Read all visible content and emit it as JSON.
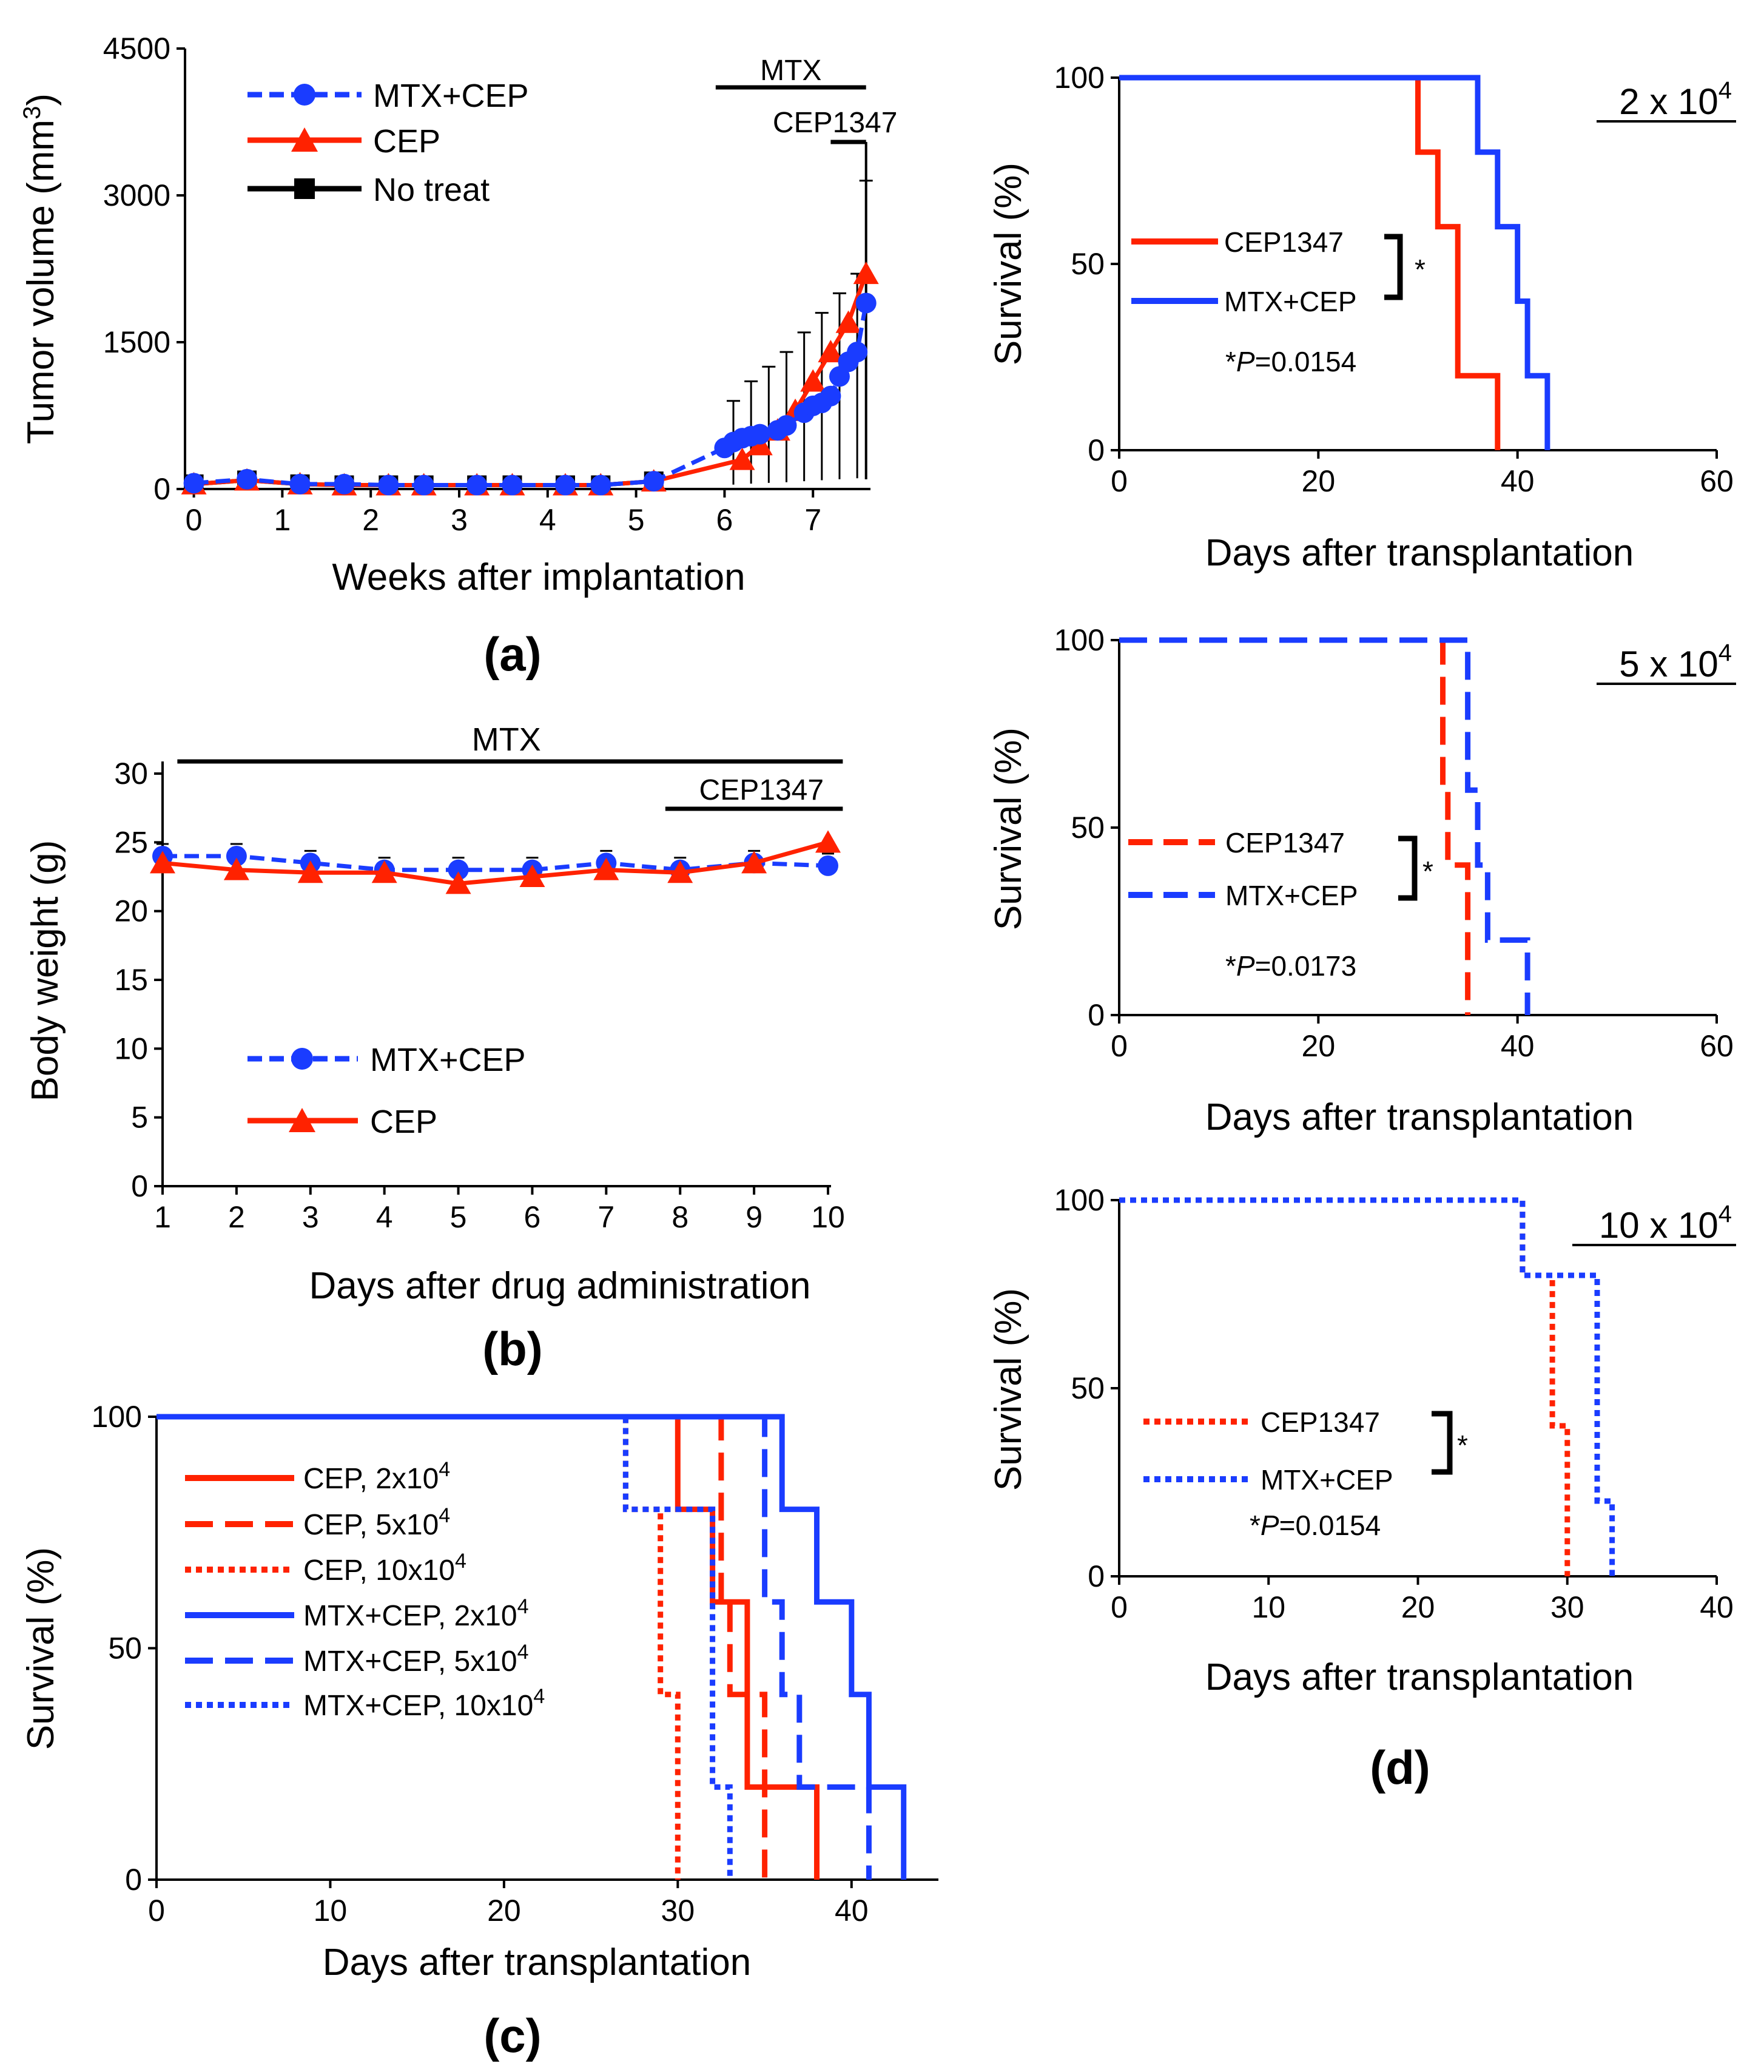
{
  "colors": {
    "red": "#ff2200",
    "blue": "#1a3cff",
    "black": "#000000"
  },
  "panels": {
    "a": {
      "label": "(a)",
      "xlabel": "Weeks after implantation",
      "ylabel": "Tumor volume (mm3)",
      "ylabel_main": "Tumor volume (mm",
      "ylabel_sup": "3",
      "ylabel_close": ")",
      "yticks": [
        "0",
        "1500",
        "3000",
        "4500"
      ],
      "xticks": [
        "0",
        "1",
        "2",
        "3",
        "4",
        "5",
        "6",
        "7"
      ],
      "bar1": "MTX",
      "bar2": "CEP1347",
      "legend": [
        "MTX+CEP",
        "CEP",
        "No treat"
      ]
    },
    "b": {
      "label": "(b)",
      "xlabel": "Days after drug administration",
      "ylabel": "Body weight (g)",
      "yticks": [
        "0",
        "5",
        "10",
        "15",
        "20",
        "25",
        "30"
      ],
      "xticks": [
        "1",
        "2",
        "3",
        "4",
        "5",
        "6",
        "7",
        "8",
        "9",
        "10"
      ],
      "bar1": "MTX",
      "bar2": "CEP1347",
      "legend": [
        "MTX+CEP",
        "CEP"
      ]
    },
    "c": {
      "label": "(c)",
      "xlabel": "Days after transplantation",
      "ylabel": "Survival (%)",
      "yticks": [
        "0",
        "50",
        "100"
      ],
      "xticks": [
        "0",
        "10",
        "20",
        "30",
        "40"
      ],
      "legend": [
        {
          "name": "CEP,  2x10",
          "sup": "4"
        },
        {
          "name": "CEP,  5x10",
          "sup": "4"
        },
        {
          "name": "CEP,  10x10",
          "sup": "4"
        },
        {
          "name": "MTX+CEP,  2x10",
          "sup": "4"
        },
        {
          "name": "MTX+CEP,  5x10",
          "sup": "4"
        },
        {
          "name": "MTX+CEP,  10x10",
          "sup": "4"
        }
      ]
    },
    "d1": {
      "conc": "2 x 10",
      "conc_sup": "4",
      "xlabel": "Days after transplantation",
      "ylabel": "Survival (%)",
      "yticks": [
        "0",
        "50",
        "100"
      ],
      "xticks": [
        "0",
        "20",
        "40",
        "60"
      ],
      "legend": [
        "CEP1347",
        "MTX+CEP"
      ],
      "star": "*",
      "p_star": "*",
      "p_italic": "P",
      "p_value": "=0.0154"
    },
    "d2": {
      "conc": "5 x 10",
      "conc_sup": "4",
      "xlabel": "Days after transplantation",
      "ylabel": "Survival (%)",
      "yticks": [
        "0",
        "50",
        "100"
      ],
      "xticks": [
        "0",
        "20",
        "40",
        "60"
      ],
      "legend": [
        "CEP1347",
        "MTX+CEP"
      ],
      "star": "*",
      "p_star": "*",
      "p_italic": "P",
      "p_value": "=0.0173"
    },
    "d3": {
      "conc": "10 x 10",
      "conc_sup": "4",
      "xlabel": "Days after transplantation",
      "ylabel": "Survival (%)",
      "yticks": [
        "0",
        "50",
        "100"
      ],
      "xticks": [
        "0",
        "10",
        "20",
        "30",
        "40"
      ],
      "legend": [
        "CEP1347",
        "MTX+CEP"
      ],
      "star": "*",
      "p_star": "*",
      "p_italic": "P",
      "p_value": "=0.0154"
    },
    "d": {
      "label": "(d)"
    }
  },
  "chart_data": [
    {
      "id": "a",
      "type": "line",
      "title": "",
      "xlabel": "Weeks after implantation",
      "ylabel": "Tumor volume (mm3)",
      "xlim": [
        -0.1,
        7.65
      ],
      "ylim": [
        0,
        4500
      ],
      "annotations": [
        "MTX",
        "CEP1347"
      ],
      "treatment_bars": [
        {
          "label": "MTX",
          "from": 5.9,
          "to": 7.6
        },
        {
          "label": "CEP1347",
          "from": 7.2,
          "to": 7.6
        }
      ],
      "series": [
        {
          "name": "MTX+CEP",
          "color": "blue",
          "dash": "dashed",
          "marker": "circle",
          "x": [
            0,
            0.6,
            1.2,
            1.7,
            2.2,
            2.6,
            3.2,
            3.6,
            4.2,
            4.6,
            5.2,
            6.0,
            6.1,
            6.2,
            6.3,
            6.4,
            6.6,
            6.7,
            6.9,
            7.0,
            7.1,
            7.2,
            7.3,
            7.4,
            7.5,
            7.6
          ],
          "y": [
            60,
            100,
            50,
            50,
            40,
            40,
            40,
            40,
            40,
            40,
            80,
            420,
            480,
            520,
            540,
            560,
            600,
            650,
            780,
            850,
            880,
            950,
            1150,
            1300,
            1400,
            1900
          ]
        },
        {
          "name": "CEP",
          "color": "red",
          "dash": "solid",
          "marker": "triangle",
          "x": [
            0,
            0.6,
            1.2,
            1.7,
            2.2,
            2.6,
            3.2,
            3.6,
            4.2,
            4.6,
            5.2,
            6.2,
            6.4,
            6.6,
            6.8,
            7.0,
            7.2,
            7.4,
            7.6
          ],
          "y": [
            50,
            90,
            50,
            40,
            40,
            40,
            40,
            40,
            40,
            40,
            80,
            300,
            450,
            600,
            800,
            1100,
            1400,
            1700,
            2200
          ]
        },
        {
          "name": "No treat",
          "color": "black",
          "dash": "solid",
          "marker": "square",
          "x": [
            0,
            0.6,
            1.2,
            1.7,
            2.2,
            2.6,
            3.2,
            3.6,
            4.2,
            4.6,
            5.2
          ],
          "y": [
            50,
            90,
            50,
            40,
            40,
            40,
            40,
            40,
            40,
            40,
            80
          ]
        }
      ],
      "error_upper": {
        "x": [
          6.1,
          6.3,
          6.5,
          6.7,
          6.9,
          7.1,
          7.3,
          7.5,
          7.6
        ],
        "y": [
          900,
          1100,
          1250,
          1400,
          1600,
          1800,
          2000,
          2200,
          3150
        ]
      }
    },
    {
      "id": "b",
      "type": "line",
      "title": "",
      "xlabel": "Days after drug administration",
      "ylabel": "Body weight (g)",
      "xlim": [
        1,
        10
      ],
      "ylim": [
        0,
        30
      ],
      "annotations": [
        "MTX",
        "CEP1347"
      ],
      "treatment_bars": [
        {
          "label": "MTX",
          "from": 1.2,
          "to": 10.2
        },
        {
          "label": "CEP1347",
          "from": 7.8,
          "to": 10.2
        }
      ],
      "series": [
        {
          "name": "MTX+CEP",
          "color": "blue",
          "dash": "dashed",
          "marker": "circle",
          "x": [
            1,
            2,
            3,
            4,
            5,
            6,
            7,
            8,
            9,
            10
          ],
          "y": [
            24.0,
            24.0,
            23.5,
            23.0,
            23.0,
            23.0,
            23.5,
            23.0,
            23.5,
            23.3
          ]
        },
        {
          "name": "CEP",
          "color": "red",
          "dash": "solid",
          "marker": "triangle",
          "x": [
            1,
            2,
            3,
            4,
            5,
            6,
            7,
            8,
            9,
            10
          ],
          "y": [
            23.5,
            23.0,
            22.8,
            22.8,
            22.0,
            22.5,
            23.0,
            22.8,
            23.5,
            25.0
          ]
        }
      ]
    },
    {
      "id": "c",
      "type": "line",
      "title": "",
      "xlabel": "Days after transplantation",
      "ylabel": "Survival (%)",
      "xlim": [
        0,
        45
      ],
      "ylim": [
        0,
        100
      ],
      "series": [
        {
          "name": "CEP, 2x10^4",
          "color": "red",
          "dash": "solid",
          "x": [
            0,
            30,
            30,
            32,
            32,
            34,
            34,
            38,
            38
          ],
          "y": [
            100,
            100,
            80,
            80,
            60,
            60,
            20,
            20,
            0
          ]
        },
        {
          "name": "CEP, 5x10^4",
          "color": "red",
          "dash": "dashed",
          "x": [
            0,
            32.5,
            32.5,
            33,
            33,
            35,
            35
          ],
          "y": [
            100,
            100,
            60,
            60,
            40,
            40,
            0
          ]
        },
        {
          "name": "CEP, 10x10^4",
          "color": "red",
          "dash": "dotted",
          "x": [
            0,
            27,
            27,
            29,
            29,
            30,
            30
          ],
          "y": [
            100,
            100,
            80,
            80,
            40,
            40,
            0
          ]
        },
        {
          "name": "MTX+CEP, 2x10^4",
          "color": "blue",
          "dash": "solid",
          "x": [
            0,
            36,
            36,
            38,
            38,
            40,
            40,
            41,
            41,
            43,
            43
          ],
          "y": [
            100,
            100,
            80,
            80,
            60,
            60,
            40,
            40,
            20,
            20,
            0
          ]
        },
        {
          "name": "MTX+CEP, 5x10^4",
          "color": "blue",
          "dash": "dashed",
          "x": [
            0,
            35,
            35,
            36,
            36,
            37,
            37,
            41,
            41
          ],
          "y": [
            100,
            100,
            60,
            60,
            40,
            40,
            20,
            20,
            0
          ]
        },
        {
          "name": "MTX+CEP, 10x10^4",
          "color": "blue",
          "dash": "dotted",
          "x": [
            0,
            27,
            27,
            32,
            32,
            33,
            33
          ],
          "y": [
            100,
            100,
            80,
            80,
            20,
            20,
            0
          ]
        }
      ]
    },
    {
      "id": "d1",
      "type": "line",
      "title": "2 x 10^4",
      "xlabel": "Days after transplantation",
      "ylabel": "Survival (%)",
      "xlim": [
        0,
        60
      ],
      "ylim": [
        0,
        100
      ],
      "annotations": [
        "*P=0.0154"
      ],
      "series": [
        {
          "name": "CEP1347",
          "color": "red",
          "dash": "solid",
          "x": [
            0,
            30,
            30,
            32,
            32,
            34,
            34,
            38,
            38
          ],
          "y": [
            100,
            100,
            80,
            80,
            60,
            60,
            20,
            20,
            0
          ]
        },
        {
          "name": "MTX+CEP",
          "color": "blue",
          "dash": "solid",
          "x": [
            0,
            36,
            36,
            38,
            38,
            40,
            40,
            41,
            41,
            43,
            43
          ],
          "y": [
            100,
            100,
            80,
            80,
            60,
            60,
            40,
            40,
            20,
            20,
            0
          ]
        }
      ]
    },
    {
      "id": "d2",
      "type": "line",
      "title": "5 x 10^4",
      "xlabel": "Days after transplantation",
      "ylabel": "Survival (%)",
      "xlim": [
        0,
        60
      ],
      "ylim": [
        0,
        100
      ],
      "annotations": [
        "*P=0.0173"
      ],
      "series": [
        {
          "name": "CEP1347",
          "color": "red",
          "dash": "dashed",
          "x": [
            0,
            32.5,
            32.5,
            33,
            33,
            35,
            35
          ],
          "y": [
            100,
            100,
            60,
            60,
            40,
            40,
            0
          ]
        },
        {
          "name": "MTX+CEP",
          "color": "blue",
          "dash": "dashed",
          "x": [
            0,
            35,
            35,
            36,
            36,
            37,
            37,
            41,
            41
          ],
          "y": [
            100,
            100,
            60,
            60,
            40,
            40,
            20,
            20,
            0
          ]
        }
      ]
    },
    {
      "id": "d3",
      "type": "line",
      "title": "10 x 10^4",
      "xlabel": "Days after transplantation",
      "ylabel": "Survival (%)",
      "xlim": [
        0,
        40
      ],
      "ylim": [
        0,
        100
      ],
      "annotations": [
        "*P=0.0154"
      ],
      "series": [
        {
          "name": "CEP1347",
          "color": "red",
          "dash": "dotted",
          "x": [
            0,
            27,
            27,
            29,
            29,
            30,
            30
          ],
          "y": [
            100,
            100,
            80,
            80,
            40,
            40,
            0
          ]
        },
        {
          "name": "MTX+CEP",
          "color": "blue",
          "dash": "dotted",
          "x": [
            0,
            27,
            27,
            32,
            32,
            33,
            33
          ],
          "y": [
            100,
            100,
            80,
            80,
            20,
            20,
            0
          ]
        }
      ]
    }
  ]
}
